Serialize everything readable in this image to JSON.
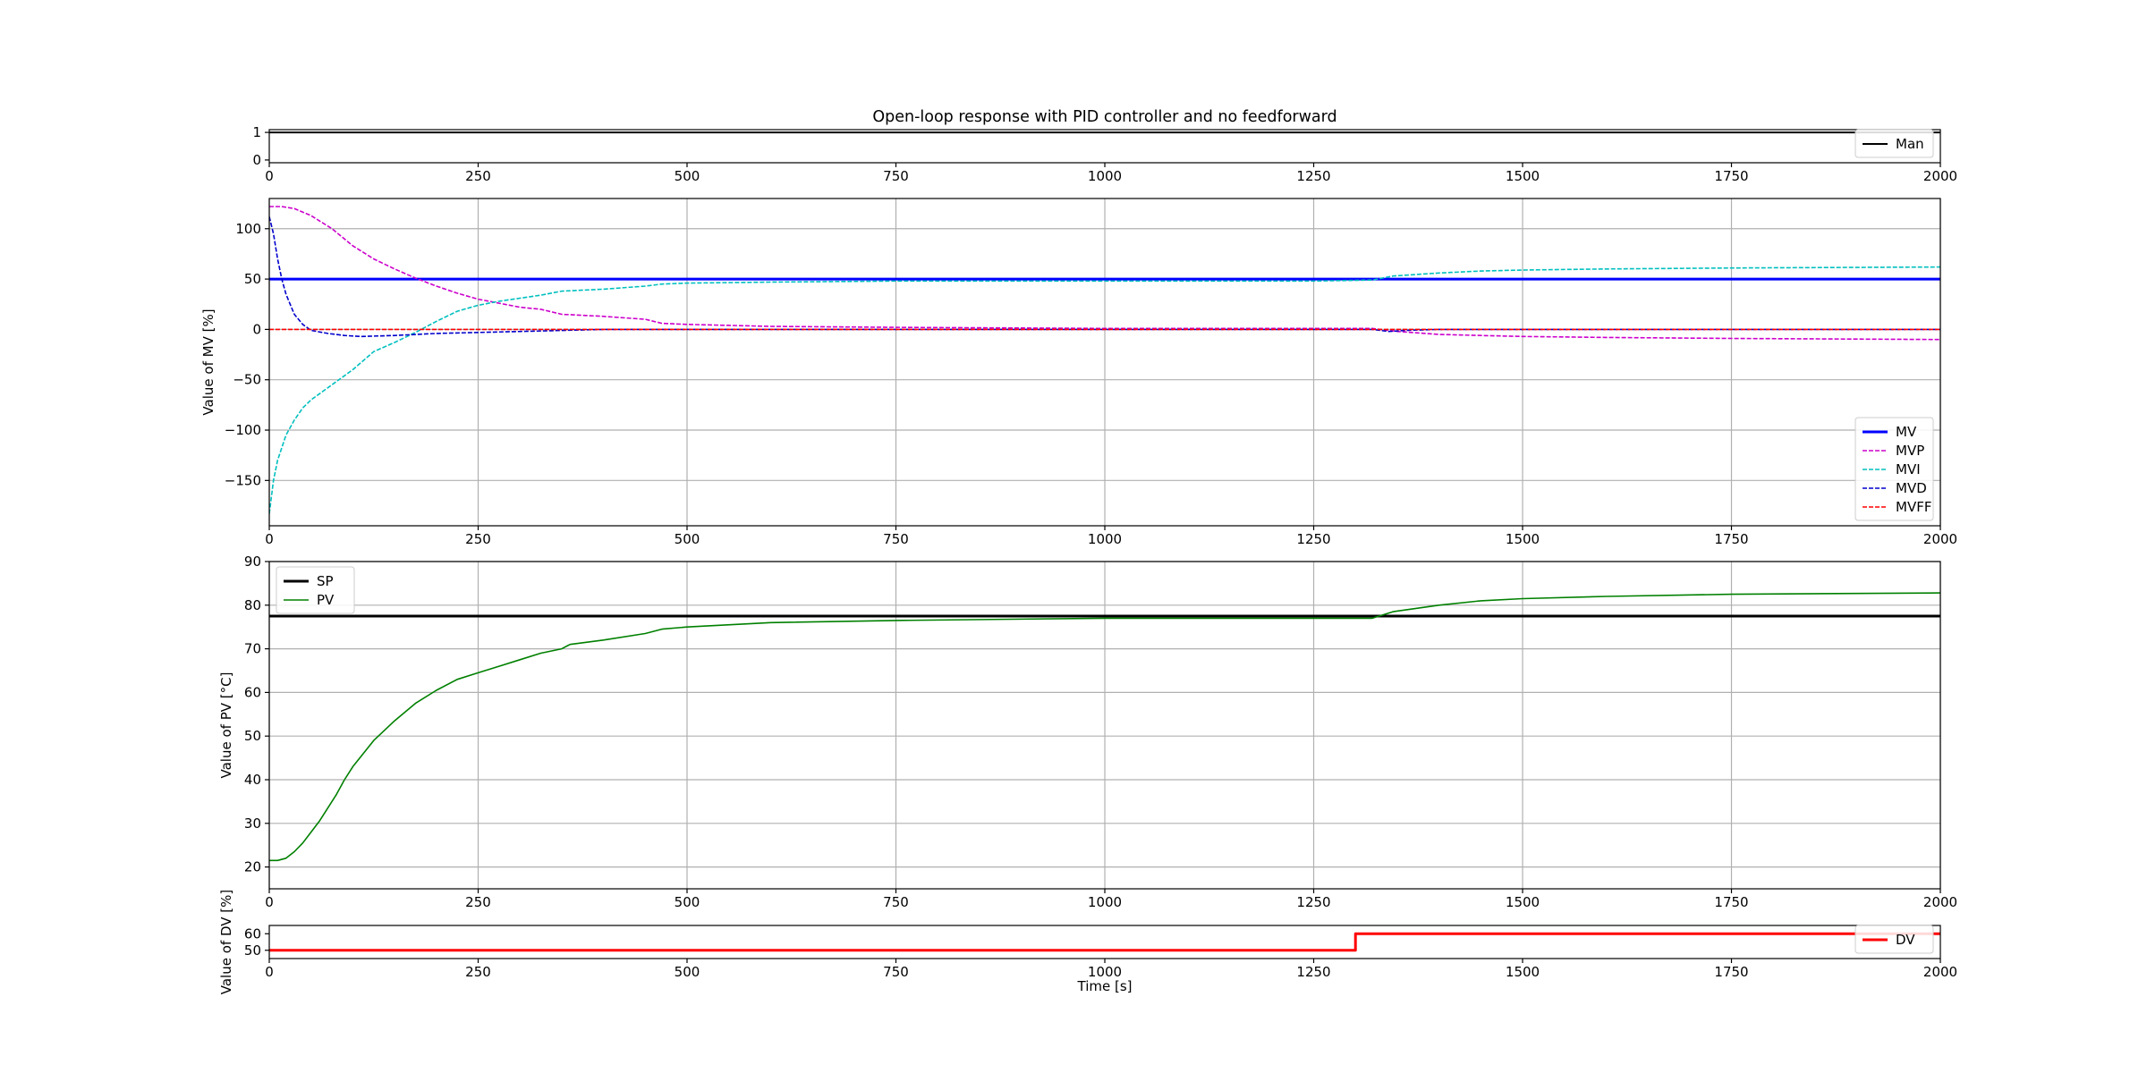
{
  "title": "Open-loop response with PID controller and no feedforward",
  "xlabel": "Time [s]",
  "chart_data": [
    {
      "id": "man",
      "type": "line",
      "ylabel": "",
      "xlim": [
        0,
        2000
      ],
      "ylim": [
        -0.1,
        1.1
      ],
      "xticks": [
        0,
        250,
        500,
        750,
        1000,
        1250,
        1500,
        1750,
        2000
      ],
      "yticks": [
        0,
        1
      ],
      "grid": false,
      "legend_position": "lower-right",
      "series": [
        {
          "name": "Man",
          "color": "#000000",
          "style": "solid",
          "width": 2,
          "points": [
            [
              0,
              1
            ],
            [
              2000,
              1
            ]
          ]
        }
      ]
    },
    {
      "id": "mv",
      "type": "line",
      "ylabel": "Value of MV [%]",
      "xlim": [
        0,
        2000
      ],
      "ylim": [
        -195,
        130
      ],
      "xticks": [
        0,
        250,
        500,
        750,
        1000,
        1250,
        1500,
        1750,
        2000
      ],
      "yticks": [
        -150,
        -100,
        -50,
        0,
        50,
        100
      ],
      "grid": true,
      "legend_position": "lower-right",
      "series": [
        {
          "name": "MV",
          "color": "#0000ff",
          "style": "solid",
          "width": 3,
          "points": [
            [
              0,
              50
            ],
            [
              2000,
              50
            ]
          ]
        },
        {
          "name": "MVP",
          "color": "#cc00cc",
          "style": "dashed",
          "width": 1.6,
          "points": [
            [
              0,
              122
            ],
            [
              15,
              122
            ],
            [
              30,
              120
            ],
            [
              50,
              113
            ],
            [
              75,
              100
            ],
            [
              100,
              83
            ],
            [
              125,
              70
            ],
            [
              150,
              60
            ],
            [
              175,
              51
            ],
            [
              200,
              43
            ],
            [
              225,
              36
            ],
            [
              250,
              30
            ],
            [
              275,
              26
            ],
            [
              300,
              22
            ],
            [
              325,
              20
            ],
            [
              350,
              15
            ],
            [
              400,
              13
            ],
            [
              450,
              10
            ],
            [
              470,
              6
            ],
            [
              500,
              5
            ],
            [
              600,
              3
            ],
            [
              750,
              2
            ],
            [
              1000,
              1
            ],
            [
              1250,
              1
            ],
            [
              1320,
              1
            ],
            [
              1350,
              -2
            ],
            [
              1400,
              -5
            ],
            [
              1450,
              -6
            ],
            [
              1500,
              -7
            ],
            [
              1600,
              -8
            ],
            [
              1750,
              -9
            ],
            [
              2000,
              -10
            ]
          ]
        },
        {
          "name": "MVI",
          "color": "#00bfbf",
          "style": "dashed",
          "width": 1.6,
          "points": [
            [
              0,
              -183
            ],
            [
              5,
              -150
            ],
            [
              10,
              -130
            ],
            [
              20,
              -105
            ],
            [
              30,
              -90
            ],
            [
              40,
              -78
            ],
            [
              50,
              -70
            ],
            [
              75,
              -55
            ],
            [
              100,
              -40
            ],
            [
              125,
              -22
            ],
            [
              150,
              -13
            ],
            [
              175,
              -3
            ],
            [
              200,
              8
            ],
            [
              225,
              18
            ],
            [
              250,
              24
            ],
            [
              275,
              28
            ],
            [
              300,
              31
            ],
            [
              325,
              34
            ],
            [
              350,
              38
            ],
            [
              400,
              40
            ],
            [
              450,
              43
            ],
            [
              470,
              45
            ],
            [
              500,
              46
            ],
            [
              600,
              47
            ],
            [
              750,
              48
            ],
            [
              1000,
              48
            ],
            [
              1250,
              48
            ],
            [
              1320,
              49
            ],
            [
              1345,
              53
            ],
            [
              1400,
              56
            ],
            [
              1450,
              58
            ],
            [
              1500,
              59
            ],
            [
              1600,
              60
            ],
            [
              1750,
              61
            ],
            [
              2000,
              62
            ]
          ]
        },
        {
          "name": "MVD",
          "color": "#0000cc",
          "style": "dashed",
          "width": 1.6,
          "points": [
            [
              0,
              112
            ],
            [
              5,
              95
            ],
            [
              10,
              70
            ],
            [
              15,
              50
            ],
            [
              20,
              35
            ],
            [
              30,
              15
            ],
            [
              40,
              5
            ],
            [
              50,
              -1
            ],
            [
              70,
              -4
            ],
            [
              90,
              -6
            ],
            [
              110,
              -7
            ],
            [
              150,
              -6
            ],
            [
              200,
              -4
            ],
            [
              300,
              -2
            ],
            [
              400,
              0
            ],
            [
              600,
              0
            ],
            [
              1320,
              0
            ],
            [
              1340,
              -2
            ],
            [
              1360,
              -1
            ],
            [
              1400,
              0
            ],
            [
              2000,
              0
            ]
          ]
        },
        {
          "name": "MVFF",
          "color": "#ff0000",
          "style": "dashed",
          "width": 1.6,
          "points": [
            [
              0,
              0
            ],
            [
              2000,
              0
            ]
          ]
        }
      ]
    },
    {
      "id": "pv",
      "type": "line",
      "ylabel": "Value of PV [°C]",
      "xlim": [
        0,
        2000
      ],
      "ylim": [
        15,
        90
      ],
      "xticks": [
        0,
        250,
        500,
        750,
        1000,
        1250,
        1500,
        1750,
        2000
      ],
      "yticks": [
        20,
        30,
        40,
        50,
        60,
        70,
        80,
        90
      ],
      "grid": true,
      "legend_position": "top-left",
      "series": [
        {
          "name": "SP",
          "color": "#000000",
          "style": "solid",
          "width": 3,
          "points": [
            [
              0,
              77.5
            ],
            [
              2000,
              77.5
            ]
          ]
        },
        {
          "name": "PV",
          "color": "#008000",
          "style": "solid",
          "width": 1.6,
          "points": [
            [
              0,
              21.5
            ],
            [
              10,
              21.5
            ],
            [
              20,
              22
            ],
            [
              30,
              23.5
            ],
            [
              40,
              25.5
            ],
            [
              50,
              28
            ],
            [
              60,
              30.5
            ],
            [
              70,
              33.5
            ],
            [
              80,
              36.5
            ],
            [
              90,
              40
            ],
            [
              100,
              43
            ],
            [
              125,
              49
            ],
            [
              150,
              53.5
            ],
            [
              175,
              57.5
            ],
            [
              200,
              60.5
            ],
            [
              225,
              63
            ],
            [
              250,
              64.5
            ],
            [
              275,
              66
            ],
            [
              300,
              67.5
            ],
            [
              325,
              69
            ],
            [
              350,
              70
            ],
            [
              360,
              71
            ],
            [
              400,
              72
            ],
            [
              450,
              73.5
            ],
            [
              470,
              74.5
            ],
            [
              500,
              75
            ],
            [
              600,
              76
            ],
            [
              750,
              76.5
            ],
            [
              1000,
              77
            ],
            [
              1250,
              77
            ],
            [
              1320,
              77
            ],
            [
              1345,
              78.5
            ],
            [
              1400,
              80
            ],
            [
              1450,
              81
            ],
            [
              1500,
              81.5
            ],
            [
              1600,
              82
            ],
            [
              1750,
              82.5
            ],
            [
              2000,
              82.8
            ]
          ]
        }
      ]
    },
    {
      "id": "dv",
      "type": "line",
      "ylabel": "Value of DV [%]",
      "xlim": [
        0,
        2000
      ],
      "ylim": [
        45,
        65
      ],
      "xticks": [
        0,
        250,
        500,
        750,
        1000,
        1250,
        1500,
        1750,
        2000
      ],
      "yticks": [
        50,
        60
      ],
      "grid": false,
      "legend_position": "lower-right",
      "series": [
        {
          "name": "DV",
          "color": "#ff0000",
          "style": "solid",
          "width": 3,
          "points": [
            [
              0,
              50
            ],
            [
              1300,
              50
            ],
            [
              1300,
              60
            ],
            [
              2000,
              60
            ]
          ]
        }
      ]
    }
  ]
}
